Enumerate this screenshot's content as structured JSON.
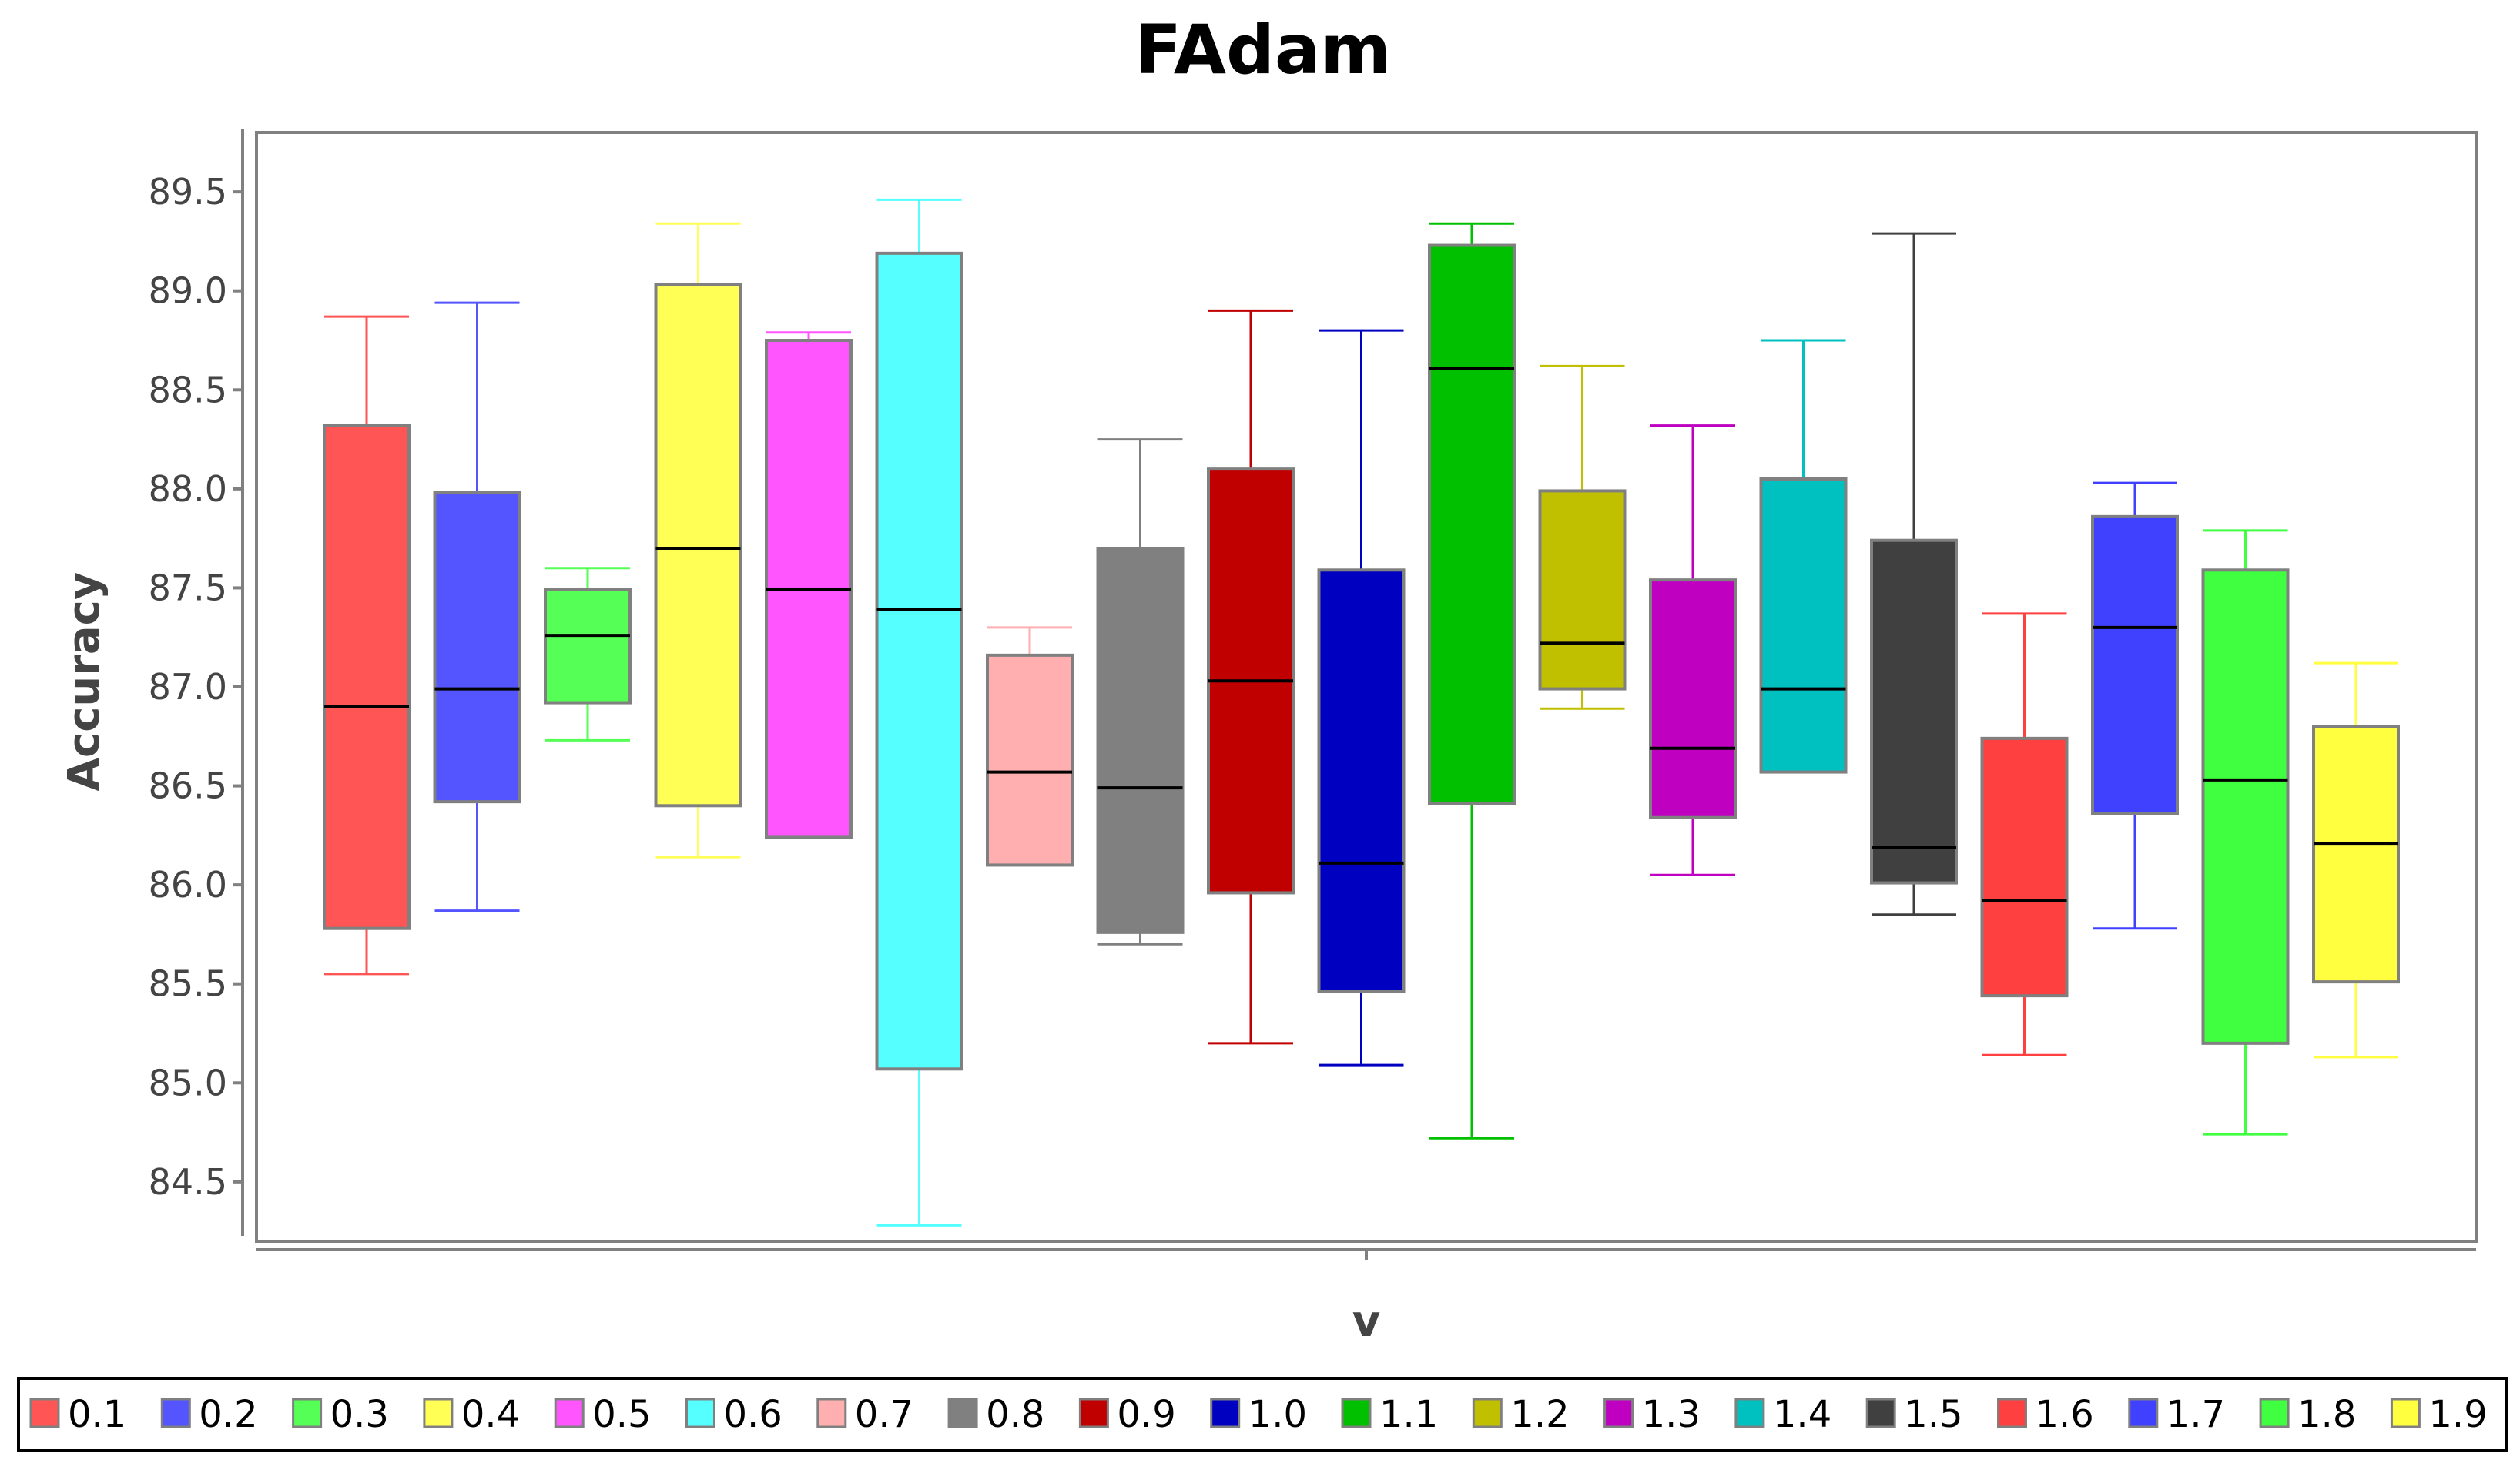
{
  "chart_data": {
    "type": "boxplot",
    "title": "FAdam",
    "xlabel": "v",
    "ylabel": "Accuracy",
    "ylim": [
      84.2,
      89.8
    ],
    "yticks": [
      "84.5",
      "85.0",
      "85.5",
      "86.0",
      "86.5",
      "87.0",
      "87.5",
      "88.0",
      "88.5",
      "89.0",
      "89.5"
    ],
    "grid": false,
    "legend_position": "bottom",
    "series": [
      {
        "name": "0.1",
        "color": "#ff5555",
        "min": 85.55,
        "q1": 85.78,
        "median": 86.9,
        "q3": 88.32,
        "max": 88.87
      },
      {
        "name": "0.2",
        "color": "#5555ff",
        "min": 85.87,
        "q1": 86.42,
        "median": 86.99,
        "q3": 87.98,
        "max": 88.94
      },
      {
        "name": "0.3",
        "color": "#55ff55",
        "min": 86.73,
        "q1": 86.92,
        "median": 87.26,
        "q3": 87.49,
        "max": 87.6
      },
      {
        "name": "0.4",
        "color": "#ffff55",
        "min": 86.14,
        "q1": 86.4,
        "median": 87.7,
        "q3": 89.03,
        "max": 89.34
      },
      {
        "name": "0.5",
        "color": "#ff55ff",
        "min": 86.24,
        "q1": 86.24,
        "median": 87.49,
        "q3": 88.75,
        "max": 88.79
      },
      {
        "name": "0.6",
        "color": "#55ffff",
        "min": 84.28,
        "q1": 85.07,
        "median": 87.39,
        "q3": 89.19,
        "max": 89.46
      },
      {
        "name": "0.7",
        "color": "#ffafaf",
        "min": 86.1,
        "q1": 86.1,
        "median": 86.57,
        "q3": 87.16,
        "max": 87.3
      },
      {
        "name": "0.8",
        "color": "#808080",
        "min": 85.7,
        "q1": 85.76,
        "median": 86.49,
        "q3": 87.7,
        "max": 88.25
      },
      {
        "name": "0.9",
        "color": "#c00000",
        "min": 85.2,
        "q1": 85.96,
        "median": 87.03,
        "q3": 88.1,
        "max": 88.9
      },
      {
        "name": "1.0",
        "color": "#0000c0",
        "min": 85.09,
        "q1": 85.46,
        "median": 86.11,
        "q3": 87.59,
        "max": 88.8
      },
      {
        "name": "1.1",
        "color": "#00c000",
        "min": 84.72,
        "q1": 86.41,
        "median": 88.61,
        "q3": 89.23,
        "max": 89.34
      },
      {
        "name": "1.2",
        "color": "#c0c000",
        "min": 86.89,
        "q1": 86.99,
        "median": 87.22,
        "q3": 87.99,
        "max": 88.62
      },
      {
        "name": "1.3",
        "color": "#c000c0",
        "min": 86.05,
        "q1": 86.34,
        "median": 86.69,
        "q3": 87.54,
        "max": 88.32
      },
      {
        "name": "1.4",
        "color": "#00c0c0",
        "min": 86.57,
        "q1": 86.57,
        "median": 86.99,
        "q3": 88.05,
        "max": 88.75
      },
      {
        "name": "1.5",
        "color": "#404040",
        "min": 85.85,
        "q1": 86.01,
        "median": 86.19,
        "q3": 87.74,
        "max": 89.29
      },
      {
        "name": "1.6",
        "color": "#ff4040",
        "min": 85.14,
        "q1": 85.44,
        "median": 85.92,
        "q3": 86.74,
        "max": 87.37
      },
      {
        "name": "1.7",
        "color": "#4040ff",
        "min": 85.78,
        "q1": 86.36,
        "median": 87.3,
        "q3": 87.86,
        "max": 88.03
      },
      {
        "name": "1.8",
        "color": "#40ff40",
        "min": 84.74,
        "q1": 85.2,
        "median": 86.53,
        "q3": 87.59,
        "max": 87.79
      },
      {
        "name": "1.9",
        "color": "#ffff40",
        "min": 85.13,
        "q1": 85.51,
        "median": 86.21,
        "q3": 86.8,
        "max": 87.12
      }
    ]
  }
}
